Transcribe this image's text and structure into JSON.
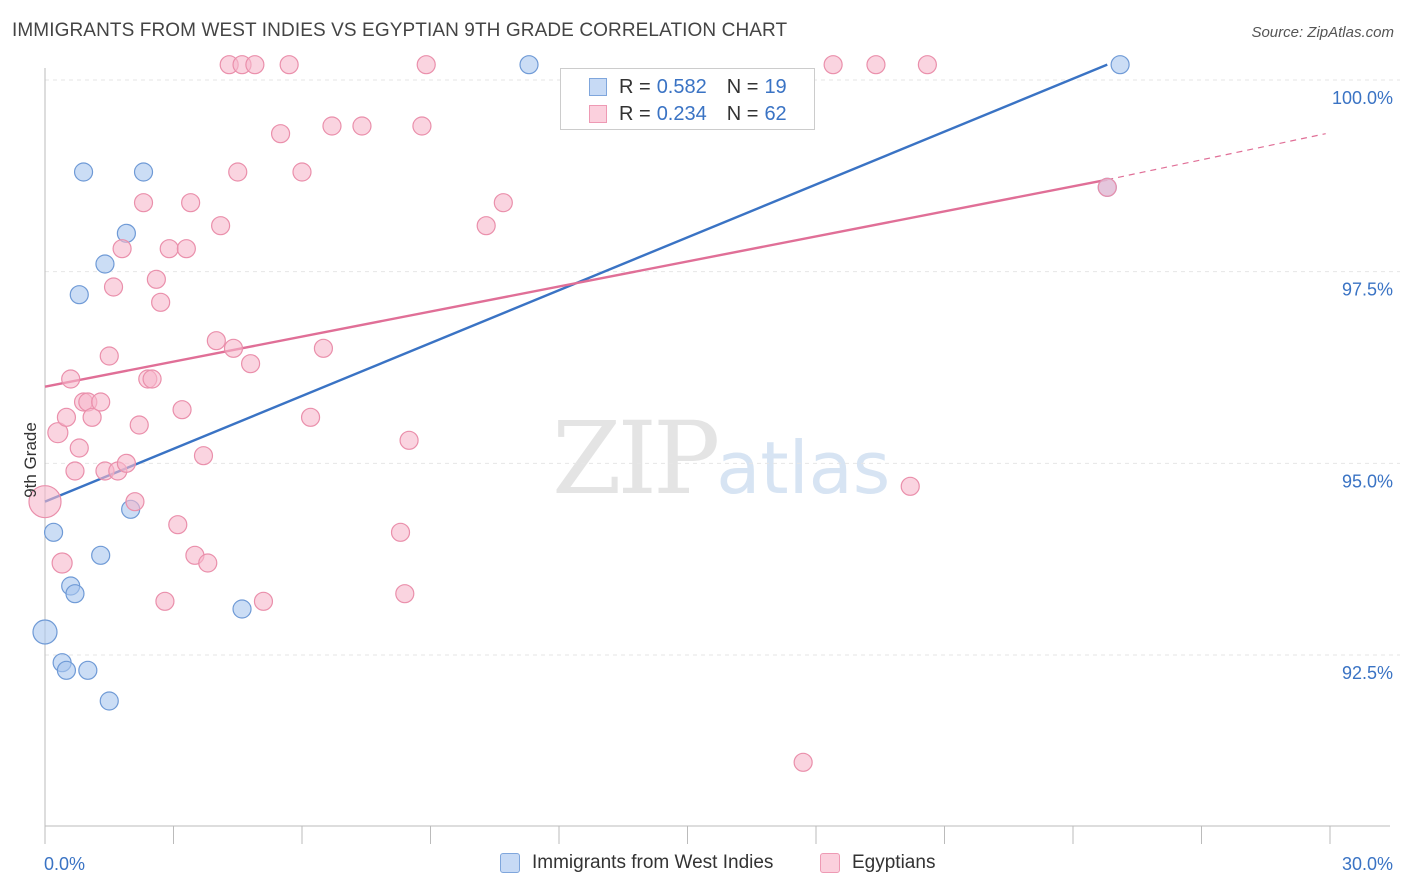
{
  "header": {
    "title": "IMMIGRANTS FROM WEST INDIES VS EGYPTIAN 9TH GRADE CORRELATION CHART",
    "source": "Source: ZipAtlas.com"
  },
  "watermark": {
    "zip": "ZIP",
    "atlas": "atlas"
  },
  "stats": [
    {
      "r_label": "R =",
      "r_value": "0.582",
      "n_label": "N =",
      "n_value": "19"
    },
    {
      "r_label": "R =",
      "r_value": "0.234",
      "n_label": "N =",
      "n_value": "62"
    }
  ],
  "legend": [
    {
      "label": "Immigrants from West Indies"
    },
    {
      "label": "Egyptians"
    }
  ],
  "colors": {
    "blue_fill": "#a9c6ef",
    "blue_stroke": "#6f9ad6",
    "blue_line": "#3a73c4",
    "pink_fill": "#f7b8cb",
    "pink_stroke": "#ea8fab",
    "pink_line": "#e06f97",
    "tick_text": "#3a73c4",
    "grid": "#e6e6e6"
  },
  "chart_data": {
    "type": "scatter",
    "title": "IMMIGRANTS FROM WEST INDIES VS EGYPTIAN 9TH GRADE CORRELATION CHART",
    "xlabel": "",
    "ylabel": "9th Grade",
    "xlim": [
      0,
      30
    ],
    "ylim": [
      90.2,
      100.4
    ],
    "x_tick_labels": [
      {
        "value": 0,
        "label": "0.0%"
      },
      {
        "value": 30,
        "label": "30.0%"
      }
    ],
    "y_ticks": [
      {
        "value": 100.0,
        "label": "100.0%"
      },
      {
        "value": 97.5,
        "label": "97.5%"
      },
      {
        "value": 95.0,
        "label": "95.0%"
      },
      {
        "value": 92.5,
        "label": "92.5%"
      }
    ],
    "grid": true,
    "series": [
      {
        "name": "Immigrants from West Indies",
        "color": "blue",
        "points": [
          [
            0.0,
            92.8,
            12
          ],
          [
            0.2,
            94.1,
            9
          ],
          [
            0.4,
            92.4,
            9
          ],
          [
            0.5,
            92.3,
            9
          ],
          [
            0.6,
            93.4,
            9
          ],
          [
            0.7,
            93.3,
            9
          ],
          [
            0.8,
            97.2,
            9
          ],
          [
            0.9,
            98.8,
            9
          ],
          [
            1.0,
            92.3,
            9
          ],
          [
            1.3,
            93.8,
            9
          ],
          [
            1.4,
            97.6,
            9
          ],
          [
            1.5,
            91.9,
            9
          ],
          [
            1.9,
            98.0,
            9
          ],
          [
            2.0,
            94.4,
            9
          ],
          [
            2.3,
            98.8,
            9
          ],
          [
            4.6,
            93.1,
            9
          ],
          [
            11.3,
            100.2,
            9
          ],
          [
            24.8,
            98.6,
            9
          ],
          [
            25.1,
            100.2,
            9
          ]
        ],
        "trend": {
          "x": [
            0.0,
            24.8
          ],
          "y": [
            94.5,
            100.2
          ]
        }
      },
      {
        "name": "Egyptians",
        "color": "pink",
        "points": [
          [
            0.0,
            94.5,
            16
          ],
          [
            0.3,
            95.4,
            10
          ],
          [
            0.4,
            93.7,
            10
          ],
          [
            0.5,
            95.6,
            9
          ],
          [
            0.6,
            96.1,
            9
          ],
          [
            0.7,
            94.9,
            9
          ],
          [
            0.8,
            95.2,
            9
          ],
          [
            0.9,
            95.8,
            9
          ],
          [
            1.0,
            95.8,
            9
          ],
          [
            1.1,
            95.6,
            9
          ],
          [
            1.3,
            95.8,
            9
          ],
          [
            1.4,
            94.9,
            9
          ],
          [
            1.5,
            96.4,
            9
          ],
          [
            1.6,
            97.3,
            9
          ],
          [
            1.7,
            94.9,
            9
          ],
          [
            1.8,
            97.8,
            9
          ],
          [
            1.9,
            95.0,
            9
          ],
          [
            2.1,
            94.5,
            9
          ],
          [
            2.2,
            95.5,
            9
          ],
          [
            2.3,
            98.4,
            9
          ],
          [
            2.4,
            96.1,
            9
          ],
          [
            2.5,
            96.1,
            9
          ],
          [
            2.6,
            97.4,
            9
          ],
          [
            2.7,
            97.1,
            9
          ],
          [
            2.8,
            93.2,
            9
          ],
          [
            2.9,
            97.8,
            9
          ],
          [
            3.1,
            94.2,
            9
          ],
          [
            3.2,
            95.7,
            9
          ],
          [
            3.3,
            97.8,
            9
          ],
          [
            3.4,
            98.4,
            9
          ],
          [
            3.5,
            93.8,
            9
          ],
          [
            3.7,
            95.1,
            9
          ],
          [
            3.8,
            93.7,
            9
          ],
          [
            4.0,
            96.6,
            9
          ],
          [
            4.1,
            98.1,
            9
          ],
          [
            4.3,
            100.2,
            9
          ],
          [
            4.4,
            96.5,
            9
          ],
          [
            4.5,
            98.8,
            9
          ],
          [
            4.6,
            100.2,
            9
          ],
          [
            4.8,
            96.3,
            9
          ],
          [
            4.9,
            100.2,
            9
          ],
          [
            5.1,
            93.2,
            9
          ],
          [
            5.5,
            99.3,
            9
          ],
          [
            5.7,
            100.2,
            9
          ],
          [
            6.0,
            98.8,
            9
          ],
          [
            6.2,
            95.6,
            9
          ],
          [
            6.5,
            96.5,
            9
          ],
          [
            6.7,
            99.4,
            9
          ],
          [
            7.4,
            99.4,
            9
          ],
          [
            8.3,
            94.1,
            9
          ],
          [
            8.4,
            93.3,
            9
          ],
          [
            8.5,
            95.3,
            9
          ],
          [
            8.8,
            99.4,
            9
          ],
          [
            8.9,
            100.2,
            9
          ],
          [
            10.3,
            98.1,
            9
          ],
          [
            10.7,
            98.4,
            9
          ],
          [
            17.7,
            91.1,
            9
          ],
          [
            18.4,
            100.2,
            9
          ],
          [
            19.4,
            100.2,
            9
          ],
          [
            20.2,
            94.7,
            9
          ],
          [
            24.8,
            98.6,
            9
          ],
          [
            20.6,
            100.2,
            9
          ]
        ],
        "trend": {
          "x": [
            0.0,
            24.8
          ],
          "y": [
            96.0,
            98.7
          ]
        },
        "trend_dashed": {
          "x": [
            24.8,
            29.9
          ],
          "y": [
            98.7,
            99.3
          ]
        }
      }
    ]
  }
}
